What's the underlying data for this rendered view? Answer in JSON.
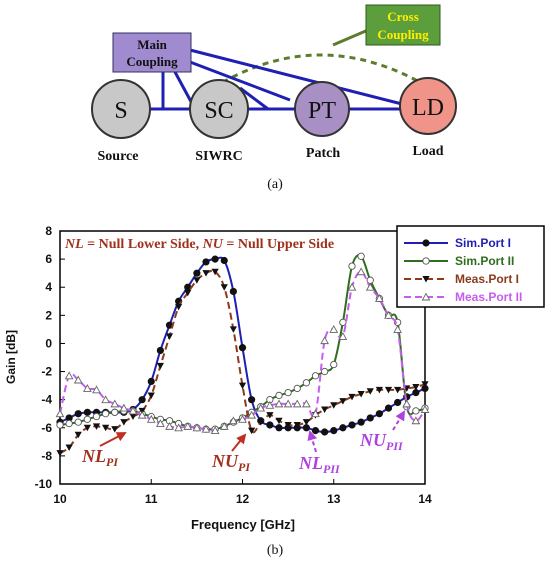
{
  "diagram": {
    "nodes": [
      {
        "id": "S",
        "label": "S",
        "caption": "Source",
        "fill": "#c8c8c8"
      },
      {
        "id": "SC",
        "label": "SC",
        "caption": "SIWRC",
        "fill": "#c8c8c8"
      },
      {
        "id": "PT",
        "label": "PT",
        "caption": "Patch",
        "fill": "#a88fc4"
      },
      {
        "id": "LD",
        "label": "LD",
        "caption": "Load",
        "fill": "#f0948a"
      }
    ],
    "main_coupling_label": [
      "Main",
      "Coupling"
    ],
    "cross_coupling_label": [
      "Cross",
      "Coupling"
    ],
    "colors": {
      "main_line": "#1f1fb4",
      "cross_line": "#5c7d2d",
      "main_box": "#a08ad0",
      "cross_box": "#5c9e3c",
      "cross_text": "#ffee00"
    },
    "caption": "(a)"
  },
  "chart_data": {
    "type": "line",
    "xlabel": "Frequency [GHz]",
    "ylabel": "Gain [dB]",
    "xlim": [
      10,
      14
    ],
    "ylim": [
      -10,
      8
    ],
    "xticks": [
      "10",
      "11",
      "12",
      "13",
      "14"
    ],
    "yticks": [
      "8",
      "6",
      "4",
      "2",
      "0",
      "-2",
      "-4",
      "-6",
      "-8",
      "-10"
    ],
    "grid": false,
    "legend_position": "top-right",
    "annotation": {
      "NL_term": "NL",
      "NL_def": " = Null Lower Side, ",
      "NU_term": "NU",
      "NU_def": " = Null Upper Side"
    },
    "null_labels": [
      {
        "main": "NL",
        "sub": "PI",
        "color": "#a0301c"
      },
      {
        "main": "NU",
        "sub": "PI",
        "color": "#a0301c"
      },
      {
        "main": "NL",
        "sub": "PII",
        "color": "#b040e0"
      },
      {
        "main": "NU",
        "sub": "PII",
        "color": "#b040e0"
      }
    ],
    "series": [
      {
        "name": "Sim.Port I",
        "color": "#1f1fb4",
        "style": "solid",
        "marker": "filled-circle",
        "x": [
          10.0,
          10.1,
          10.2,
          10.3,
          10.4,
          10.5,
          10.6,
          10.7,
          10.8,
          10.9,
          11.0,
          11.1,
          11.2,
          11.3,
          11.4,
          11.5,
          11.6,
          11.7,
          11.8,
          11.9,
          12.0,
          12.1,
          12.2,
          12.3,
          12.4,
          12.5,
          12.6,
          12.7,
          12.8,
          12.9,
          13.0,
          13.1,
          13.2,
          13.3,
          13.4,
          13.5,
          13.6,
          13.7,
          13.8,
          13.9,
          14.0
        ],
        "y": [
          -5.6,
          -5.3,
          -5.0,
          -4.9,
          -4.9,
          -4.9,
          -4.9,
          -4.9,
          -4.7,
          -4.0,
          -2.7,
          -0.5,
          1.3,
          3.0,
          4.0,
          5.0,
          5.8,
          6.0,
          5.9,
          3.7,
          -0.3,
          -4.0,
          -5.5,
          -5.8,
          -6.0,
          -6.0,
          -6.0,
          -6.0,
          -6.2,
          -6.3,
          -6.2,
          -6.0,
          -5.8,
          -5.6,
          -5.3,
          -5.0,
          -4.6,
          -4.2,
          -3.8,
          -3.5,
          -3.2
        ]
      },
      {
        "name": "Sim.Port II",
        "color": "#2e6e1c",
        "style": "solid",
        "marker": "open-circle",
        "x": [
          10.0,
          10.1,
          10.2,
          10.3,
          10.4,
          10.5,
          10.6,
          10.7,
          10.8,
          10.9,
          11.0,
          11.1,
          11.2,
          11.3,
          11.4,
          11.5,
          11.6,
          11.7,
          11.8,
          11.9,
          12.0,
          12.1,
          12.2,
          12.3,
          12.4,
          12.5,
          12.6,
          12.7,
          12.8,
          12.9,
          13.0,
          13.1,
          13.2,
          13.3,
          13.4,
          13.5,
          13.6,
          13.7,
          13.8,
          13.9,
          14.0
        ],
        "y": [
          -5.8,
          -5.7,
          -5.6,
          -5.4,
          -5.2,
          -5.0,
          -4.9,
          -4.8,
          -4.8,
          -5.0,
          -5.2,
          -5.4,
          -5.5,
          -5.7,
          -5.9,
          -6.0,
          -6.1,
          -6.1,
          -5.9,
          -5.6,
          -5.3,
          -4.9,
          -4.5,
          -4.0,
          -3.7,
          -3.5,
          -3.2,
          -2.8,
          -2.3,
          -2.0,
          -1.5,
          1.5,
          5.5,
          6.2,
          4.5,
          3.2,
          2.0,
          1.5,
          -4.5,
          -4.8,
          -4.6
        ]
      },
      {
        "name": "Meas.Port I",
        "color": "#8b3a1a",
        "style": "dashed",
        "marker": "filled-triangle-down",
        "x": [
          10.0,
          10.1,
          10.2,
          10.3,
          10.4,
          10.5,
          10.6,
          10.7,
          10.8,
          10.9,
          11.0,
          11.1,
          11.2,
          11.3,
          11.4,
          11.5,
          11.6,
          11.7,
          11.8,
          11.9,
          12.0,
          12.1,
          12.2,
          12.3,
          12.4,
          12.5,
          12.6,
          12.7,
          12.8,
          12.9,
          13.0,
          13.1,
          13.2,
          13.3,
          13.4,
          13.5,
          13.6,
          13.7,
          13.8,
          13.9,
          14.0
        ],
        "y": [
          -7.8,
          -7.4,
          -6.5,
          -6.0,
          -5.9,
          -6.0,
          -6.1,
          -5.6,
          -5.2,
          -4.8,
          -3.7,
          -1.6,
          0.5,
          2.6,
          3.6,
          4.5,
          5.0,
          5.1,
          4.0,
          1.0,
          -3.0,
          -6.2,
          -5.6,
          -5.1,
          -5.5,
          -5.8,
          -5.8,
          -5.6,
          -5.1,
          -4.7,
          -4.4,
          -4.1,
          -3.8,
          -3.6,
          -3.4,
          -3.3,
          -3.3,
          -3.3,
          -3.2,
          -3.1,
          -2.9
        ]
      },
      {
        "name": "Meas.Port II",
        "color": "#c65cf0",
        "style": "dashed",
        "marker": "open-triangle-up",
        "x": [
          10.0,
          10.1,
          10.2,
          10.3,
          10.4,
          10.5,
          10.6,
          10.7,
          10.8,
          10.9,
          11.0,
          11.1,
          11.2,
          11.3,
          11.4,
          11.5,
          11.6,
          11.7,
          11.8,
          11.9,
          12.0,
          12.1,
          12.2,
          12.3,
          12.4,
          12.5,
          12.6,
          12.7,
          12.8,
          12.9,
          13.0,
          13.1,
          13.2,
          13.3,
          13.4,
          13.5,
          13.6,
          13.7,
          13.8,
          13.9,
          14.0
        ],
        "y": [
          -5.0,
          -2.3,
          -2.6,
          -3.2,
          -3.3,
          -4.0,
          -4.3,
          -4.6,
          -4.8,
          -5.1,
          -5.4,
          -5.7,
          -5.9,
          -6.0,
          -5.9,
          -6.0,
          -6.1,
          -6.2,
          -5.9,
          -5.5,
          -5.4,
          -5.1,
          -4.6,
          -4.4,
          -4.3,
          -4.3,
          -4.3,
          -4.3,
          -5.0,
          0.2,
          1.0,
          0.5,
          4.0,
          5.1,
          4.0,
          3.2,
          2.0,
          1.0,
          -4.3,
          -5.5,
          -4.7
        ]
      }
    ],
    "caption": "(b)"
  }
}
